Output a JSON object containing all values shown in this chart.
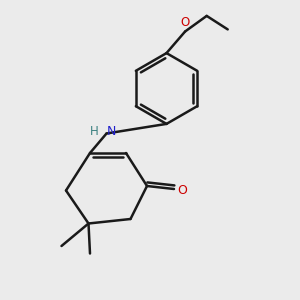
{
  "bg_color": "#ebebeb",
  "bond_color": "#1a1a1a",
  "bond_width": 1.8,
  "N_color": "#2020cc",
  "O_color": "#cc0000",
  "H_color": "#3a8080",
  "figsize": [
    3.0,
    3.0
  ],
  "dpi": 100,
  "xlim": [
    0,
    10
  ],
  "ylim": [
    0,
    10
  ]
}
